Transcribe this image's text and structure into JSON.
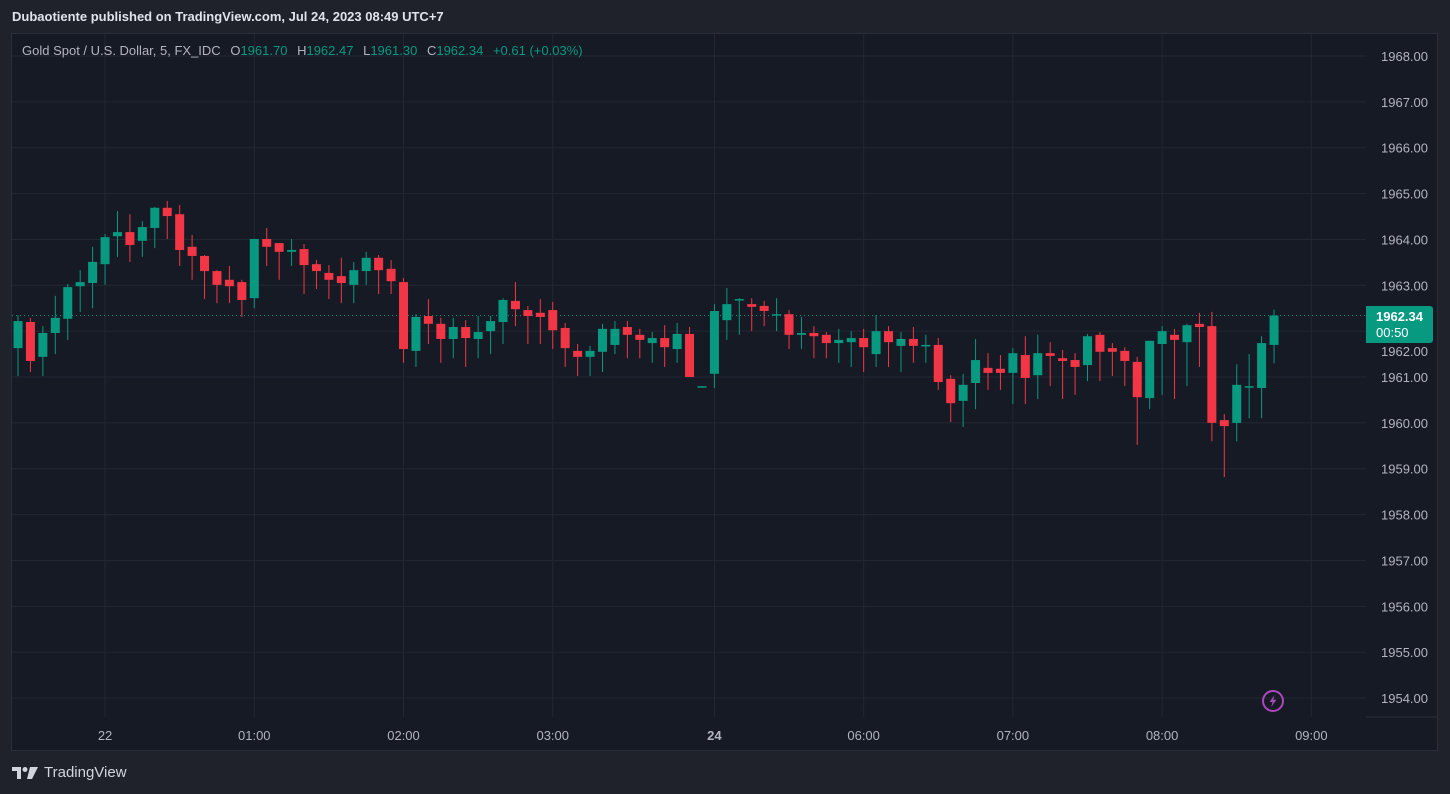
{
  "header": {
    "title": "Dubaotiente published on TradingView.com, Jul 24, 2023 08:49 UTC+7"
  },
  "legend": {
    "symbol": "Gold Spot / U.S. Dollar, 5, FX_IDC",
    "o_label": "O",
    "o": "1961.70",
    "h_label": "H",
    "h": "1962.47",
    "l_label": "L",
    "l": "1961.30",
    "c_label": "C",
    "c": "1962.34",
    "change": "+0.61 (+0.03%)"
  },
  "price_tag": {
    "price": "1962.34",
    "countdown": "00:50"
  },
  "brand": {
    "name": "TradingView"
  },
  "icons": {
    "alert": "lightning-icon",
    "logo": "tradingview-logo-icon"
  },
  "colors": {
    "up": "#089981",
    "down": "#f23645",
    "background": "#161a25",
    "grid": "#232733",
    "alert": "#ab47bc"
  },
  "chart_data": {
    "type": "candlestick",
    "symbol": "Gold Spot / U.S. Dollar",
    "interval": "5",
    "ylim": [
      1953.7,
      1968.3
    ],
    "y_ticks": [
      "1968.00",
      "1967.00",
      "1966.00",
      "1965.00",
      "1964.00",
      "1963.00",
      "1962.00",
      "1961.00",
      "1960.00",
      "1959.00",
      "1958.00",
      "1957.00",
      "1956.00",
      "1955.00",
      "1954.00"
    ],
    "x_ticks": [
      {
        "label": "22",
        "t": "Jul 22 00:00",
        "bold": false
      },
      {
        "label": "01:00",
        "t": "Jul 22 01:00",
        "bold": false
      },
      {
        "label": "02:00",
        "t": "Jul 22 02:00",
        "bold": false
      },
      {
        "label": "03:00",
        "t": "Jul 22 03:00",
        "bold": false
      },
      {
        "label": "24",
        "t": "Jul 24 05:00",
        "bold": true
      },
      {
        "label": "06:00",
        "t": "Jul 24 06:00",
        "bold": false
      },
      {
        "label": "07:00",
        "t": "Jul 24 07:00",
        "bold": false
      },
      {
        "label": "08:00",
        "t": "Jul 24 08:00",
        "bold": false
      },
      {
        "label": "09:00",
        "t": "Jul 24 09:00",
        "bold": false
      }
    ],
    "last_price": 1962.34,
    "grid": true,
    "columns": [
      "t",
      "open",
      "high",
      "low",
      "close"
    ],
    "candles": [
      [
        "Jul 21 23:25",
        1961.63,
        1962.35,
        1961.02,
        1962.22
      ],
      [
        "Jul 21 23:30",
        1962.2,
        1962.29,
        1961.11,
        1961.35
      ],
      [
        "Jul 21 23:35",
        1961.44,
        1962.11,
        1961.02,
        1961.96
      ],
      [
        "Jul 21 23:40",
        1961.96,
        1962.77,
        1961.5,
        1962.29
      ],
      [
        "Jul 21 23:45",
        1962.27,
        1963.03,
        1961.81,
        1962.96
      ],
      [
        "Jul 21 23:50",
        1962.98,
        1963.33,
        1962.42,
        1963.07
      ],
      [
        "Jul 21 23:55",
        1963.05,
        1963.84,
        1962.5,
        1963.51
      ],
      [
        "Jul 22 00:00",
        1963.46,
        1964.12,
        1963.01,
        1964.05
      ],
      [
        "Jul 22 00:05",
        1964.07,
        1964.62,
        1963.62,
        1964.16
      ],
      [
        "Jul 22 00:10",
        1964.16,
        1964.55,
        1963.51,
        1963.88
      ],
      [
        "Jul 22 00:15",
        1963.97,
        1964.4,
        1963.62,
        1964.27
      ],
      [
        "Jul 22 00:20",
        1964.25,
        1964.71,
        1963.81,
        1964.69
      ],
      [
        "Jul 22 00:25",
        1964.69,
        1964.84,
        1964.01,
        1964.51
      ],
      [
        "Jul 22 00:30",
        1964.55,
        1964.75,
        1963.42,
        1963.77
      ],
      [
        "Jul 22 00:35",
        1963.84,
        1964.1,
        1963.12,
        1963.64
      ],
      [
        "Jul 22 00:40",
        1963.64,
        1963.66,
        1962.7,
        1963.31
      ],
      [
        "Jul 22 00:45",
        1963.31,
        1963.33,
        1962.61,
        1963.01
      ],
      [
        "Jul 22 00:50",
        1963.12,
        1963.42,
        1962.61,
        1962.98
      ],
      [
        "Jul 22 00:55",
        1963.07,
        1963.12,
        1962.31,
        1962.68
      ],
      [
        "Jul 22 01:00",
        1962.72,
        1964.01,
        1962.5,
        1964.01
      ],
      [
        "Jul 22 01:05",
        1964.01,
        1964.25,
        1963.42,
        1963.84
      ],
      [
        "Jul 22 01:10",
        1963.92,
        1963.92,
        1963.12,
        1963.73
      ],
      [
        "Jul 22 01:15",
        1963.73,
        1964.01,
        1963.42,
        1963.77
      ],
      [
        "Jul 22 01:20",
        1963.79,
        1963.9,
        1962.81,
        1963.44
      ],
      [
        "Jul 22 01:25",
        1963.46,
        1963.55,
        1962.92,
        1963.31
      ],
      [
        "Jul 22 01:30",
        1963.27,
        1963.44,
        1962.7,
        1963.12
      ],
      [
        "Jul 22 01:35",
        1963.2,
        1963.6,
        1962.61,
        1963.05
      ],
      [
        "Jul 22 01:40",
        1963.01,
        1963.51,
        1962.61,
        1963.33
      ],
      [
        "Jul 22 01:45",
        1963.31,
        1963.73,
        1963.01,
        1963.6
      ],
      [
        "Jul 22 01:50",
        1963.6,
        1963.66,
        1962.81,
        1963.33
      ],
      [
        "Jul 22 01:55",
        1963.36,
        1963.55,
        1962.81,
        1963.09
      ],
      [
        "Jul 22 02:00",
        1963.07,
        1963.16,
        1961.31,
        1961.61
      ],
      [
        "Jul 22 02:05",
        1961.57,
        1962.37,
        1961.22,
        1962.31
      ],
      [
        "Jul 22 02:10",
        1962.33,
        1962.7,
        1961.72,
        1962.16
      ],
      [
        "Jul 22 02:15",
        1962.16,
        1962.29,
        1961.31,
        1961.83
      ],
      [
        "Jul 22 02:20",
        1961.83,
        1962.29,
        1961.41,
        1962.09
      ],
      [
        "Jul 22 02:25",
        1962.09,
        1962.24,
        1961.22,
        1961.85
      ],
      [
        "Jul 22 02:30",
        1961.83,
        1962.33,
        1961.41,
        1961.98
      ],
      [
        "Jul 22 02:35",
        1962.0,
        1962.33,
        1961.5,
        1962.22
      ],
      [
        "Jul 22 02:40",
        1962.2,
        1962.72,
        1961.72,
        1962.68
      ],
      [
        "Jul 22 02:45",
        1962.66,
        1963.07,
        1962.11,
        1962.48
      ],
      [
        "Jul 22 02:50",
        1962.46,
        1962.55,
        1961.72,
        1962.33
      ],
      [
        "Jul 22 02:55",
        1962.4,
        1962.7,
        1961.72,
        1962.31
      ],
      [
        "Jul 22 03:00",
        1962.46,
        1962.64,
        1961.61,
        1962.02
      ],
      [
        "Jul 22 03:05",
        1962.07,
        1962.18,
        1961.22,
        1961.63
      ],
      [
        "Jul 22 03:10",
        1961.57,
        1961.72,
        1961.02,
        1961.44
      ],
      [
        "Jul 22 03:15",
        1961.44,
        1961.68,
        1961.02,
        1961.57
      ],
      [
        "Jul 22 03:20",
        1961.55,
        1962.16,
        1961.11,
        1962.05
      ],
      [
        "Jul 22 03:25",
        1961.7,
        1962.22,
        1961.5,
        1962.05
      ],
      [
        "Jul 22 03:30",
        1962.09,
        1962.22,
        1961.41,
        1961.92
      ],
      [
        "Jul 22 03:35",
        1961.92,
        1962.05,
        1961.41,
        1961.81
      ],
      [
        "Jul 22 03:40",
        1961.74,
        1961.98,
        1961.31,
        1961.85
      ],
      [
        "Jul 22 03:45",
        1961.85,
        1962.13,
        1961.22,
        1961.65
      ],
      [
        "Jul 22 03:50",
        1961.61,
        1962.18,
        1961.31,
        1961.94
      ],
      [
        "Jul 22 03:55",
        1961.94,
        1962.09,
        1961.0,
        1961.0
      ],
      [
        "Jul 22 04:00",
        1960.8,
        1960.8,
        1960.8,
        1960.8
      ],
      [
        "Jul 24 05:00",
        1961.07,
        1962.59,
        1960.76,
        1962.44
      ],
      [
        "Jul 24 05:05",
        1962.24,
        1962.94,
        1961.81,
        1962.59
      ],
      [
        "Jul 24 05:10",
        1962.68,
        1962.72,
        1961.92,
        1962.7
      ],
      [
        "Jul 24 05:15",
        1962.59,
        1962.72,
        1962.0,
        1962.53
      ],
      [
        "Jul 24 05:20",
        1962.55,
        1962.66,
        1962.11,
        1962.44
      ],
      [
        "Jul 24 05:25",
        1962.35,
        1962.72,
        1962.0,
        1962.37
      ],
      [
        "Jul 24 05:30",
        1962.37,
        1962.46,
        1961.61,
        1961.92
      ],
      [
        "Jul 24 05:35",
        1961.92,
        1962.31,
        1961.61,
        1961.96
      ],
      [
        "Jul 24 05:40",
        1961.96,
        1962.11,
        1961.41,
        1961.89
      ],
      [
        "Jul 24 05:45",
        1961.92,
        1961.98,
        1961.41,
        1961.74
      ],
      [
        "Jul 24 05:50",
        1961.74,
        1962.05,
        1961.31,
        1961.81
      ],
      [
        "Jul 24 05:55",
        1961.76,
        1962.0,
        1961.22,
        1961.85
      ],
      [
        "Jul 24 06:00",
        1961.85,
        1962.05,
        1961.11,
        1961.65
      ],
      [
        "Jul 24 06:05",
        1961.5,
        1962.35,
        1961.22,
        1962.0
      ],
      [
        "Jul 24 06:10",
        1962.0,
        1962.11,
        1961.22,
        1961.76
      ],
      [
        "Jul 24 06:15",
        1961.68,
        1961.98,
        1961.11,
        1961.83
      ],
      [
        "Jul 24 06:20",
        1961.83,
        1962.09,
        1961.31,
        1961.68
      ],
      [
        "Jul 24 06:25",
        1961.68,
        1961.92,
        1961.31,
        1961.7
      ],
      [
        "Jul 24 06:30",
        1961.7,
        1961.85,
        1960.72,
        1960.89
      ],
      [
        "Jul 24 06:35",
        1960.96,
        1961.04,
        1960.02,
        1960.43
      ],
      [
        "Jul 24 06:40",
        1960.48,
        1961.07,
        1959.91,
        1960.83
      ],
      [
        "Jul 24 06:45",
        1960.87,
        1961.83,
        1960.3,
        1961.37
      ],
      [
        "Jul 24 06:50",
        1961.2,
        1961.52,
        1960.72,
        1961.09
      ],
      [
        "Jul 24 06:55",
        1961.18,
        1961.48,
        1960.72,
        1961.09
      ],
      [
        "Jul 24 07:00",
        1961.09,
        1961.63,
        1960.41,
        1961.52
      ],
      [
        "Jul 24 07:05",
        1961.48,
        1961.89,
        1960.41,
        1960.98
      ],
      [
        "Jul 24 07:10",
        1961.04,
        1961.92,
        1960.52,
        1961.52
      ],
      [
        "Jul 24 07:15",
        1961.52,
        1961.76,
        1960.8,
        1961.46
      ],
      [
        "Jul 24 07:20",
        1961.41,
        1961.59,
        1960.52,
        1961.35
      ],
      [
        "Jul 24 07:25",
        1961.37,
        1961.52,
        1960.61,
        1961.22
      ],
      [
        "Jul 24 07:30",
        1961.26,
        1961.94,
        1960.91,
        1961.89
      ],
      [
        "Jul 24 07:35",
        1961.92,
        1961.98,
        1960.91,
        1961.55
      ],
      [
        "Jul 24 07:40",
        1961.63,
        1961.74,
        1961.02,
        1961.55
      ],
      [
        "Jul 24 07:45",
        1961.57,
        1961.65,
        1960.8,
        1961.35
      ],
      [
        "Jul 24 07:50",
        1961.33,
        1961.44,
        1959.52,
        1960.56
      ],
      [
        "Jul 24 07:55",
        1960.54,
        1961.79,
        1960.3,
        1961.79
      ],
      [
        "Jul 24 08:00",
        1961.72,
        1962.11,
        1960.61,
        1962.0
      ],
      [
        "Jul 24 08:05",
        1961.92,
        1962.05,
        1960.52,
        1961.81
      ],
      [
        "Jul 24 08:10",
        1961.76,
        1962.16,
        1960.8,
        1962.13
      ],
      [
        "Jul 24 08:15",
        1962.16,
        1962.4,
        1961.22,
        1962.09
      ],
      [
        "Jul 24 08:20",
        1962.11,
        1962.42,
        1959.6,
        1960.0
      ],
      [
        "Jul 24 08:25",
        1960.06,
        1960.19,
        1958.82,
        1959.93
      ],
      [
        "Jul 24 08:30",
        1960.0,
        1961.28,
        1959.6,
        1960.83
      ],
      [
        "Jul 24 08:35",
        1960.78,
        1961.5,
        1960.1,
        1960.8
      ],
      [
        "Jul 24 08:40",
        1960.76,
        1961.89,
        1960.1,
        1961.74
      ],
      [
        "Jul 24 08:45",
        1961.7,
        1962.47,
        1961.3,
        1962.34
      ]
    ]
  }
}
